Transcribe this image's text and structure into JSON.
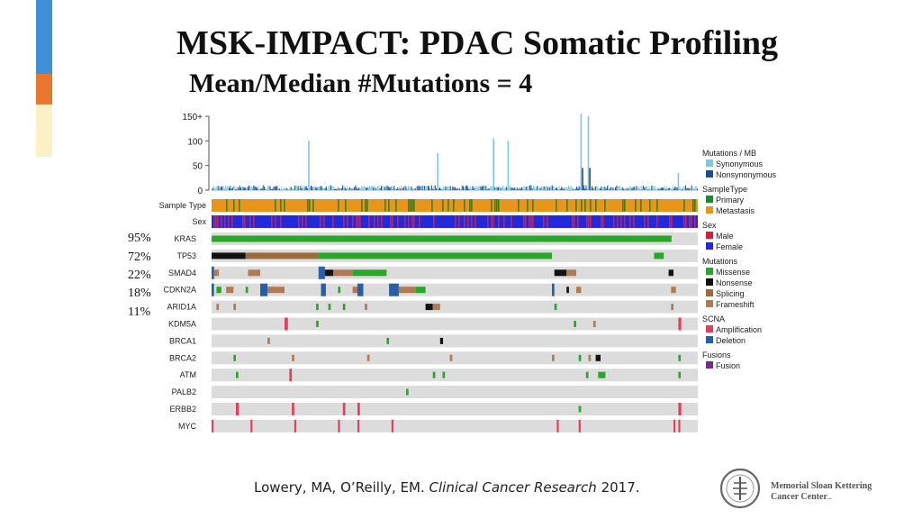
{
  "title": "MSK-IMPACT: PDAC Somatic Profiling",
  "subtitle": "Mean/Median #Mutations = 4",
  "colors": {
    "accent_blue": "#3f8fd9",
    "accent_orange": "#e8762c",
    "accent_yellow": "#fbf1c4",
    "synonymous": "#7ec8e0",
    "nonsynonymous": "#1f4e8c",
    "primary": "#1e8a2e",
    "metastasis": "#e8951a",
    "male": "#d21f3c",
    "female": "#2229d9",
    "missense": "#2aa62a",
    "nonsense": "#111111",
    "splicing": "#9b6b3a",
    "frameshift": "#b07a52",
    "amplification": "#e0415a",
    "deletion": "#2660a8",
    "fusion": "#7a2a8c",
    "track_bg": "#dcdcdc"
  },
  "chart_data": {
    "type": "table",
    "title": "MSK-IMPACT: PDAC Somatic Profiling",
    "subtitle": "Mean/Median #Mutations = 4",
    "mutation_burden": {
      "ylabel": "Mutations / MB",
      "ylim": [
        0,
        150
      ],
      "ticks": [
        "150+",
        "100",
        "50",
        "0"
      ],
      "tick_values": [
        150,
        100,
        50,
        0
      ],
      "baseline_value": 5,
      "spikes": [
        {
          "pos": 0.2,
          "value": 100,
          "type": "synonymous"
        },
        {
          "pos": 0.465,
          "value": 75,
          "type": "synonymous"
        },
        {
          "pos": 0.58,
          "value": 105,
          "type": "synonymous"
        },
        {
          "pos": 0.61,
          "value": 100,
          "type": "synonymous"
        },
        {
          "pos": 0.76,
          "value": 155,
          "type": "synonymous"
        },
        {
          "pos": 0.763,
          "value": 45,
          "type": "nonsynonymous"
        },
        {
          "pos": 0.775,
          "value": 150,
          "type": "synonymous"
        },
        {
          "pos": 0.778,
          "value": 45,
          "type": "nonsynonymous"
        },
        {
          "pos": 0.96,
          "value": 35,
          "type": "synonymous"
        }
      ]
    },
    "clinical_tracks": [
      "Sample Type",
      "Sex"
    ],
    "genes": [
      {
        "name": "KRAS",
        "pct": "95%"
      },
      {
        "name": "TP53",
        "pct": "72%"
      },
      {
        "name": "SMAD4",
        "pct": "22%"
      },
      {
        "name": "CDKN2A",
        "pct": "18%"
      },
      {
        "name": "ARID1A",
        "pct": "11%"
      },
      {
        "name": "KDM5A",
        "pct": ""
      },
      {
        "name": "BRCA1",
        "pct": ""
      },
      {
        "name": "BRCA2",
        "pct": ""
      },
      {
        "name": "ATM",
        "pct": ""
      },
      {
        "name": "PALB2",
        "pct": ""
      },
      {
        "name": "ERBB2",
        "pct": ""
      },
      {
        "name": "MYC",
        "pct": ""
      }
    ],
    "alterations": {
      "KRAS": [
        [
          0.0,
          0.946,
          "missense"
        ]
      ],
      "TP53": [
        [
          0.0,
          0.07,
          "nonsense"
        ],
        [
          0.07,
          0.22,
          "splicing"
        ],
        [
          0.22,
          0.7,
          "missense"
        ],
        [
          0.91,
          0.93,
          "missense"
        ]
      ],
      "SMAD4": [
        [
          0.0,
          0.005,
          "deletion"
        ],
        [
          0.005,
          0.015,
          "frameshift"
        ],
        [
          0.075,
          0.1,
          "frameshift"
        ],
        [
          0.22,
          0.233,
          "deletion"
        ],
        [
          0.233,
          0.25,
          "nonsense"
        ],
        [
          0.25,
          0.29,
          "frameshift"
        ],
        [
          0.29,
          0.36,
          "missense"
        ],
        [
          0.705,
          0.73,
          "nonsense"
        ],
        [
          0.73,
          0.75,
          "frameshift"
        ],
        [
          0.94,
          0.95,
          "nonsense"
        ]
      ],
      "CDKN2A": [
        [
          0.0,
          0.005,
          "deletion"
        ],
        [
          0.01,
          0.02,
          "missense"
        ],
        [
          0.03,
          0.045,
          "frameshift"
        ],
        [
          0.07,
          0.075,
          "missense"
        ],
        [
          0.1,
          0.115,
          "deletion"
        ],
        [
          0.115,
          0.15,
          "frameshift"
        ],
        [
          0.225,
          0.235,
          "deletion"
        ],
        [
          0.26,
          0.265,
          "missense"
        ],
        [
          0.29,
          0.3,
          "frameshift"
        ],
        [
          0.3,
          0.312,
          "deletion"
        ],
        [
          0.365,
          0.385,
          "deletion"
        ],
        [
          0.385,
          0.42,
          "frameshift"
        ],
        [
          0.42,
          0.44,
          "missense"
        ],
        [
          0.7,
          0.705,
          "deletion"
        ],
        [
          0.73,
          0.735,
          "nonsense"
        ],
        [
          0.75,
          0.76,
          "frameshift"
        ],
        [
          0.945,
          0.955,
          "frameshift"
        ]
      ],
      "ARID1A": [
        [
          0.01,
          0.015,
          "frameshift"
        ],
        [
          0.045,
          0.05,
          "frameshift"
        ],
        [
          0.215,
          0.22,
          "missense"
        ],
        [
          0.24,
          0.245,
          "missense"
        ],
        [
          0.27,
          0.275,
          "missense"
        ],
        [
          0.315,
          0.32,
          "frameshift"
        ],
        [
          0.44,
          0.455,
          "nonsense"
        ],
        [
          0.455,
          0.47,
          "frameshift"
        ],
        [
          0.705,
          0.71,
          "missense"
        ],
        [
          0.945,
          0.95,
          "frameshift"
        ]
      ],
      "KDM5A": [
        [
          0.15,
          0.157,
          "amplification"
        ],
        [
          0.215,
          0.22,
          "missense"
        ],
        [
          0.745,
          0.75,
          "missense"
        ],
        [
          0.785,
          0.79,
          "frameshift"
        ],
        [
          0.96,
          0.966,
          "amplification"
        ]
      ],
      "BRCA1": [
        [
          0.115,
          0.12,
          "frameshift"
        ],
        [
          0.36,
          0.365,
          "missense"
        ],
        [
          0.47,
          0.476,
          "nonsense"
        ]
      ],
      "BRCA2": [
        [
          0.045,
          0.05,
          "missense"
        ],
        [
          0.165,
          0.17,
          "frameshift"
        ],
        [
          0.32,
          0.325,
          "frameshift"
        ],
        [
          0.49,
          0.495,
          "frameshift"
        ],
        [
          0.7,
          0.705,
          "frameshift"
        ],
        [
          0.755,
          0.76,
          "missense"
        ],
        [
          0.775,
          0.78,
          "frameshift"
        ],
        [
          0.79,
          0.8,
          "nonsense"
        ],
        [
          0.96,
          0.965,
          "missense"
        ]
      ],
      "ATM": [
        [
          0.05,
          0.055,
          "missense"
        ],
        [
          0.16,
          0.165,
          "amplification"
        ],
        [
          0.455,
          0.46,
          "missense"
        ],
        [
          0.475,
          0.48,
          "missense"
        ],
        [
          0.77,
          0.775,
          "missense"
        ],
        [
          0.795,
          0.81,
          "missense"
        ],
        [
          0.96,
          0.965,
          "missense"
        ]
      ],
      "PALB2": [
        [
          0.4,
          0.405,
          "missense"
        ]
      ],
      "ERBB2": [
        [
          0.05,
          0.056,
          "amplification"
        ],
        [
          0.165,
          0.17,
          "amplification"
        ],
        [
          0.27,
          0.275,
          "amplification"
        ],
        [
          0.3,
          0.305,
          "amplification"
        ],
        [
          0.755,
          0.76,
          "missense"
        ],
        [
          0.96,
          0.966,
          "amplification"
        ]
      ],
      "MYC": [
        [
          0.0,
          0.004,
          "amplification"
        ],
        [
          0.08,
          0.084,
          "amplification"
        ],
        [
          0.17,
          0.174,
          "amplification"
        ],
        [
          0.26,
          0.264,
          "amplification"
        ],
        [
          0.3,
          0.304,
          "amplification"
        ],
        [
          0.37,
          0.374,
          "amplification"
        ],
        [
          0.71,
          0.714,
          "amplification"
        ],
        [
          0.755,
          0.759,
          "amplification"
        ],
        [
          0.95,
          0.954,
          "amplification"
        ],
        [
          0.96,
          0.964,
          "amplification"
        ]
      ]
    },
    "legend": [
      {
        "title": "Mutations / MB",
        "items": [
          {
            "label": "Synonymous",
            "color": "#7ec8e0"
          },
          {
            "label": "Nonsynonymous",
            "color": "#1f4e8c"
          }
        ]
      },
      {
        "title": "SampleType",
        "items": [
          {
            "label": "Primary",
            "color": "#1e8a2e"
          },
          {
            "label": "Metastasis",
            "color": "#e8951a"
          }
        ]
      },
      {
        "title": "Sex",
        "items": [
          {
            "label": "Male",
            "color": "#d21f3c"
          },
          {
            "label": "Female",
            "color": "#2229d9"
          }
        ]
      },
      {
        "title": "Mutations",
        "items": [
          {
            "label": "Missense",
            "color": "#2aa62a"
          },
          {
            "label": "Nonsense",
            "color": "#111111"
          },
          {
            "label": "Splicing",
            "color": "#9b6b3a"
          },
          {
            "label": "Frameshift",
            "color": "#b07a52"
          }
        ]
      },
      {
        "title": "SCNA",
        "items": [
          {
            "label": "Amplification",
            "color": "#e0415a"
          },
          {
            "label": "Deletion",
            "color": "#2660a8"
          }
        ]
      },
      {
        "title": "Fusions",
        "items": [
          {
            "label": "Fusion",
            "color": "#7a2a8c"
          }
        ]
      }
    ]
  },
  "citation": {
    "authors": "Lowery, MA, O’Reilly, EM.",
    "journal": "Clinical Cancer Research",
    "year": "2017."
  },
  "logo": {
    "line1": "Memorial Sloan Kettering",
    "line2": "Cancer Center",
    "suffix": "..."
  }
}
